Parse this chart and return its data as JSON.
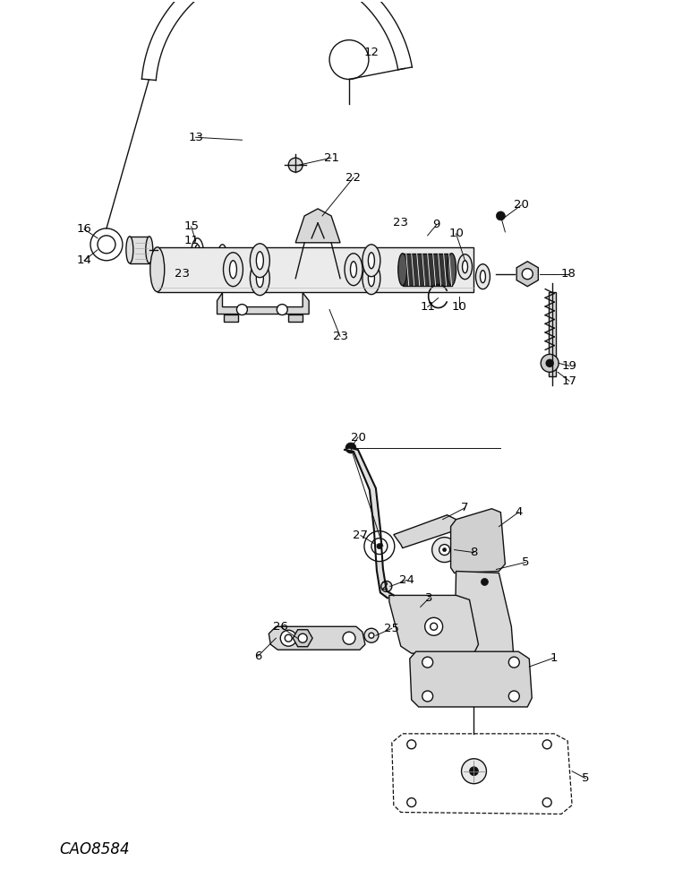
{
  "bg_color": "#ffffff",
  "line_color": "#111111",
  "label_color": "#000000",
  "watermark": "CAO8584",
  "fig_width": 7.72,
  "fig_height": 10.0,
  "dpi": 100
}
